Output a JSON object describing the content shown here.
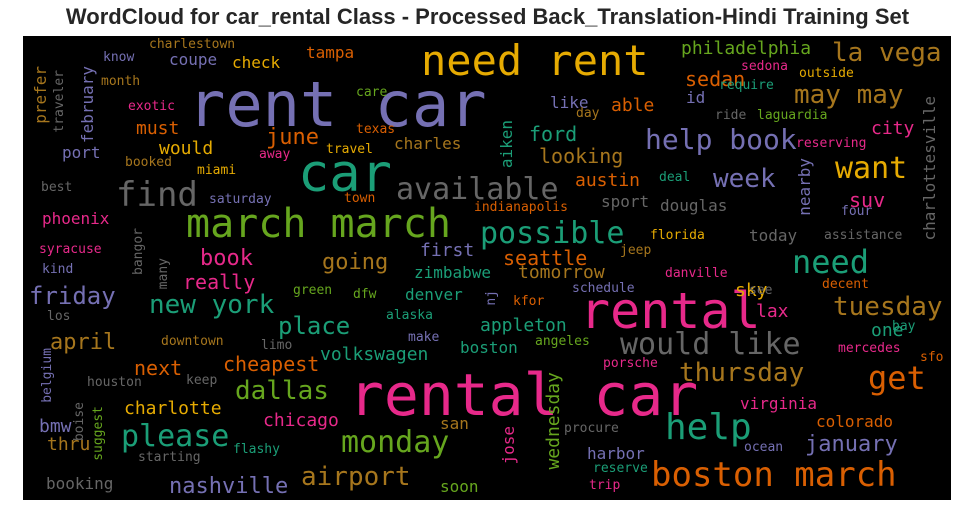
{
  "title": "WordCloud for car_rental Class - Processed Back_Translation-Hindi Training Set",
  "palette": {
    "background": "#000000",
    "purple": "#7570b3",
    "teal": "#1b9e77",
    "green": "#66a61e",
    "orange": "#d95f02",
    "gold": "#e6ab02",
    "pink": "#e7298a",
    "brown": "#a6761d",
    "gray": "#666666"
  },
  "words": [
    {
      "text": "rent car",
      "color": "purple"
    },
    {
      "text": "rental car",
      "color": "pink"
    },
    {
      "text": "need rent",
      "color": "gold"
    },
    {
      "text": "car",
      "color": "teal"
    },
    {
      "text": "rental",
      "color": "pink"
    },
    {
      "text": "march march",
      "color": "green"
    },
    {
      "text": "boston march",
      "color": "orange"
    },
    {
      "text": "help",
      "color": "teal"
    },
    {
      "text": "find",
      "color": "gray"
    },
    {
      "text": "available",
      "color": "gray"
    },
    {
      "text": "would like",
      "color": "gray"
    },
    {
      "text": "need",
      "color": "teal"
    },
    {
      "text": "possible",
      "color": "teal"
    },
    {
      "text": "please",
      "color": "teal"
    },
    {
      "text": "monday",
      "color": "green"
    },
    {
      "text": "get",
      "color": "orange"
    },
    {
      "text": "want",
      "color": "gold"
    },
    {
      "text": "help book",
      "color": "purple"
    },
    {
      "text": "may may",
      "color": "brown"
    },
    {
      "text": "la vega",
      "color": "brown"
    },
    {
      "text": "new york",
      "color": "teal"
    },
    {
      "text": "tuesday",
      "color": "brown"
    },
    {
      "text": "thursday",
      "color": "brown"
    },
    {
      "text": "dallas",
      "color": "green"
    },
    {
      "text": "airport",
      "color": "brown"
    },
    {
      "text": "place",
      "color": "teal"
    },
    {
      "text": "friday",
      "color": "purple"
    },
    {
      "text": "week",
      "color": "purple"
    },
    {
      "text": "nashville",
      "color": "purple"
    },
    {
      "text": "january",
      "color": "purple"
    },
    {
      "text": "june",
      "color": "orange"
    },
    {
      "text": "book",
      "color": "pink"
    },
    {
      "text": "going",
      "color": "brown"
    },
    {
      "text": "april",
      "color": "brown"
    },
    {
      "text": "really",
      "color": "pink"
    },
    {
      "text": "cheapest",
      "color": "orange"
    },
    {
      "text": "chicago",
      "color": "pink"
    },
    {
      "text": "charlotte",
      "color": "gold"
    },
    {
      "text": "next",
      "color": "orange"
    },
    {
      "text": "seattle",
      "color": "orange"
    },
    {
      "text": "ford",
      "color": "teal"
    },
    {
      "text": "looking",
      "color": "brown"
    },
    {
      "text": "sedan",
      "color": "orange"
    },
    {
      "text": "philadelphia",
      "color": "green"
    },
    {
      "text": "suv",
      "color": "pink"
    },
    {
      "text": "city",
      "color": "pink"
    },
    {
      "text": "first",
      "color": "purple"
    },
    {
      "text": "austin",
      "color": "orange"
    },
    {
      "text": "douglas",
      "color": "gray"
    },
    {
      "text": "appleton",
      "color": "teal"
    },
    {
      "text": "boston",
      "color": "teal"
    },
    {
      "text": "volkswagen",
      "color": "teal"
    },
    {
      "text": "denver",
      "color": "teal"
    },
    {
      "text": "zimbabwe",
      "color": "teal"
    },
    {
      "text": "tomorrow",
      "color": "brown"
    },
    {
      "text": "virginia",
      "color": "pink"
    },
    {
      "text": "colorado",
      "color": "orange"
    },
    {
      "text": "lax",
      "color": "pink"
    },
    {
      "text": "sky",
      "color": "gold"
    },
    {
      "text": "one",
      "color": "teal"
    },
    {
      "text": "today",
      "color": "gray"
    },
    {
      "text": "bmw",
      "color": "purple"
    },
    {
      "text": "thru",
      "color": "brown"
    },
    {
      "text": "must",
      "color": "orange"
    },
    {
      "text": "would",
      "color": "gold"
    },
    {
      "text": "charles",
      "color": "brown"
    },
    {
      "text": "port",
      "color": "purple"
    },
    {
      "text": "phoenix",
      "color": "pink"
    },
    {
      "text": "check",
      "color": "gold"
    },
    {
      "text": "coupe",
      "color": "purple"
    },
    {
      "text": "tampa",
      "color": "orange"
    },
    {
      "text": "able",
      "color": "orange"
    },
    {
      "text": "like",
      "color": "purple"
    },
    {
      "text": "id",
      "color": "purple"
    },
    {
      "text": "san",
      "color": "brown"
    },
    {
      "text": "soon",
      "color": "green"
    },
    {
      "text": "booking",
      "color": "gray"
    },
    {
      "text": "harbor",
      "color": "purple"
    },
    {
      "text": "sport",
      "color": "gray"
    },
    {
      "text": "require",
      "color": "teal"
    },
    {
      "text": "sedona",
      "color": "pink"
    },
    {
      "text": "outside",
      "color": "gold"
    },
    {
      "text": "laguardia",
      "color": "green"
    },
    {
      "text": "ride",
      "color": "gray"
    },
    {
      "text": "day",
      "color": "brown"
    },
    {
      "text": "reserving",
      "color": "pink"
    },
    {
      "text": "deal",
      "color": "teal"
    },
    {
      "text": "four",
      "color": "purple"
    },
    {
      "text": "florida",
      "color": "gold"
    },
    {
      "text": "jeep",
      "color": "brown"
    },
    {
      "text": "danville",
      "color": "pink"
    },
    {
      "text": "assistance",
      "color": "gray"
    },
    {
      "text": "see",
      "color": "gray"
    },
    {
      "text": "decent",
      "color": "orange"
    },
    {
      "text": "bay",
      "color": "teal"
    },
    {
      "text": "mercedes",
      "color": "pink"
    },
    {
      "text": "sfo",
      "color": "orange"
    },
    {
      "text": "kfor",
      "color": "orange"
    },
    {
      "text": "schedule",
      "color": "purple"
    },
    {
      "text": "angeles",
      "color": "green"
    },
    {
      "text": "porsche",
      "color": "pink"
    },
    {
      "text": "procure",
      "color": "gray"
    },
    {
      "text": "ocean",
      "color": "purple"
    },
    {
      "text": "reserve",
      "color": "teal"
    },
    {
      "text": "trip",
      "color": "pink"
    },
    {
      "text": "alaska",
      "color": "teal"
    },
    {
      "text": "make",
      "color": "purple"
    },
    {
      "text": "dfw",
      "color": "green"
    },
    {
      "text": "green",
      "color": "green"
    },
    {
      "text": "limo",
      "color": "gray"
    },
    {
      "text": "downtown",
      "color": "brown"
    },
    {
      "text": "keep",
      "color": "gray"
    },
    {
      "text": "houston",
      "color": "gray"
    },
    {
      "text": "los",
      "color": "gray"
    },
    {
      "text": "kind",
      "color": "purple"
    },
    {
      "text": "syracuse",
      "color": "pink"
    },
    {
      "text": "best",
      "color": "gray"
    },
    {
      "text": "miami",
      "color": "gold"
    },
    {
      "text": "booked",
      "color": "brown"
    },
    {
      "text": "away",
      "color": "pink"
    },
    {
      "text": "travel",
      "color": "gold"
    },
    {
      "text": "texas",
      "color": "orange"
    },
    {
      "text": "town",
      "color": "orange"
    },
    {
      "text": "saturday",
      "color": "purple"
    },
    {
      "text": "indianapolis",
      "color": "orange"
    },
    {
      "text": "exotic",
      "color": "pink"
    },
    {
      "text": "care",
      "color": "green"
    },
    {
      "text": "know",
      "color": "purple"
    },
    {
      "text": "month",
      "color": "brown"
    },
    {
      "text": "charlestown",
      "color": "brown"
    },
    {
      "text": "flashy",
      "color": "teal"
    },
    {
      "text": "starting",
      "color": "gray"
    },
    {
      "text": "nearby",
      "color": "purple"
    },
    {
      "text": "charlottesville",
      "color": "gray"
    },
    {
      "text": "aiken",
      "color": "teal"
    },
    {
      "text": "february",
      "color": "purple"
    },
    {
      "text": "prefer",
      "color": "brown"
    },
    {
      "text": "traveler",
      "color": "gray"
    },
    {
      "text": "bangor",
      "color": "gray"
    },
    {
      "text": "many",
      "color": "gray"
    },
    {
      "text": "nj",
      "color": "purple"
    },
    {
      "text": "wednesday",
      "color": "green"
    },
    {
      "text": "jose",
      "color": "pink"
    },
    {
      "text": "suggest",
      "color": "green"
    },
    {
      "text": "boise",
      "color": "gray"
    },
    {
      "text": "belgium",
      "color": "purple"
    }
  ]
}
